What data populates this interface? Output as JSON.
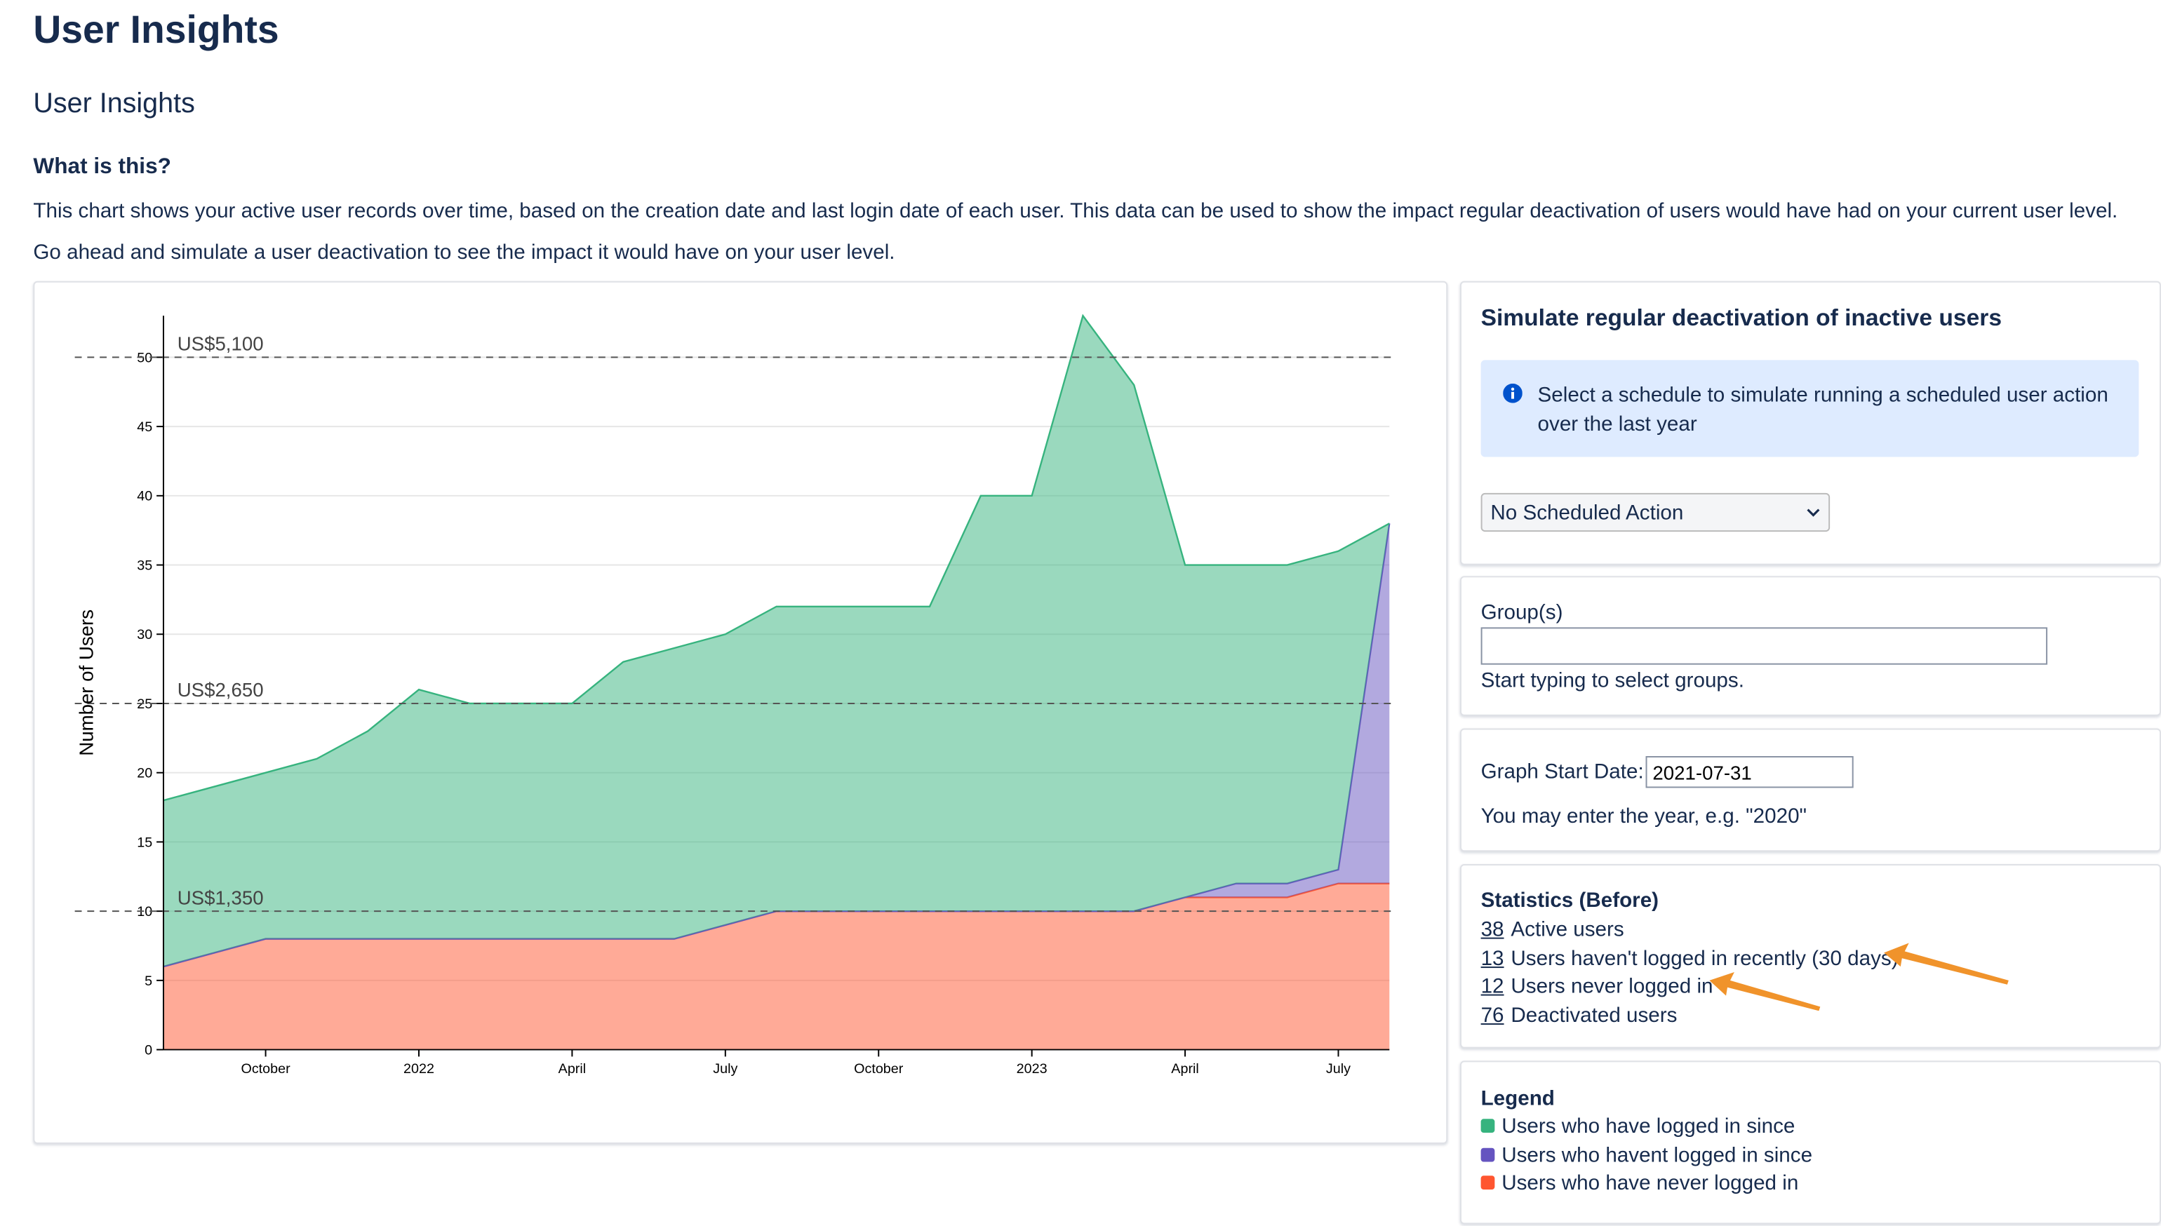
{
  "page": {
    "title": "User Insights",
    "subtitle": "User Insights",
    "what_heading": "What is this?",
    "description": "This chart shows your active user records over time, based on the creation date and last login date of each user. This data can be used to show the impact regular deactivation of users would have had on your current user level.",
    "prompt": "Go ahead and simulate a user deactivation to see the impact it would have on your user level."
  },
  "chart_data": {
    "type": "area",
    "stacked": true,
    "y_label": "Number of Users",
    "x": [
      "2021-08",
      "2021-09",
      "2021-10",
      "2021-11",
      "2021-12",
      "2022-01",
      "2022-02",
      "2022-03",
      "2022-04",
      "2022-05",
      "2022-06",
      "2022-07",
      "2022-08",
      "2022-09",
      "2022-10",
      "2022-11",
      "2022-12",
      "2023-01",
      "2023-02",
      "2023-03",
      "2023-04",
      "2023-05",
      "2023-06",
      "2023-07",
      "2023-08"
    ],
    "series": [
      {
        "name": "Users who have logged in since",
        "color": "#36b37e",
        "values": [
          12,
          12,
          12,
          13,
          15,
          18,
          17,
          17,
          17,
          20,
          21,
          21,
          22,
          22,
          22,
          22,
          30,
          30,
          43,
          38,
          24,
          23,
          23,
          23,
          0
        ]
      },
      {
        "name": "Users who havent logged in since",
        "color": "#6554c0",
        "values": [
          0,
          0,
          0,
          0,
          0,
          0,
          0,
          0,
          0,
          0,
          0,
          0,
          0,
          0,
          0,
          0,
          0,
          0,
          0,
          0,
          0,
          1,
          1,
          1,
          26
        ]
      },
      {
        "name": "Users who have never logged in",
        "color": "#ff5630",
        "values": [
          6,
          7,
          8,
          8,
          8,
          8,
          8,
          8,
          8,
          8,
          8,
          9,
          10,
          10,
          10,
          10,
          10,
          10,
          10,
          10,
          11,
          11,
          11,
          12,
          12
        ]
      }
    ],
    "xlim": [
      "2021-08",
      "2023-08"
    ],
    "xticks": [
      {
        "value": "2021-10",
        "label": "October"
      },
      {
        "value": "2022-01",
        "label": "2022"
      },
      {
        "value": "2022-04",
        "label": "April"
      },
      {
        "value": "2022-07",
        "label": "July"
      },
      {
        "value": "2022-10",
        "label": "October"
      },
      {
        "value": "2023-01",
        "label": "2023"
      },
      {
        "value": "2023-04",
        "label": "April"
      },
      {
        "value": "2023-07",
        "label": "July"
      }
    ],
    "ylim": [
      0,
      53
    ],
    "yticks": [
      0,
      5,
      10,
      15,
      20,
      25,
      30,
      35,
      40,
      45,
      50
    ],
    "grid": true,
    "thresholds": [
      {
        "value": 50,
        "label": "US$5,100"
      },
      {
        "value": 25,
        "label": "US$2,650"
      },
      {
        "value": 10,
        "label": "US$1,350"
      }
    ]
  },
  "simulate": {
    "title": "Simulate regular deactivation of inactive users",
    "info": "Select a schedule to simulate running a scheduled user action over the last year",
    "select": "No Scheduled Action"
  },
  "groups": {
    "label": "Group(s)",
    "hint": "Start typing to select groups."
  },
  "start_date": {
    "label": "Graph Start Date:",
    "value": "2021-07-31",
    "hint": "You may enter the year, e.g. \"2020\""
  },
  "statistics": {
    "title": "Statistics (Before)",
    "items": [
      {
        "count": 38,
        "label": "Active users"
      },
      {
        "count": 13,
        "label": "Users haven't logged in recently (30 days)"
      },
      {
        "count": 12,
        "label": "Users never logged in"
      },
      {
        "count": 76,
        "label": "Deactivated users"
      }
    ]
  },
  "legend": {
    "title": "Legend"
  }
}
